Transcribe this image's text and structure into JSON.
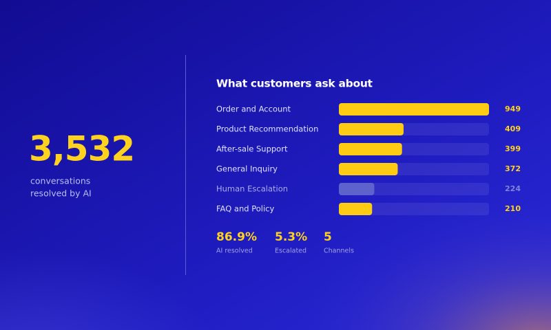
{
  "headline": {
    "value": "3,532",
    "label_lines": [
      "conversations",
      "resolved by AI"
    ]
  },
  "chart_data": {
    "type": "hbar",
    "title": "What customers ask about",
    "categories": [
      "Order and Account",
      "Product Recommendation",
      "After-sale Support",
      "General Inquiry",
      "Human Escalation",
      "FAQ and Policy"
    ],
    "values": [
      949,
      409,
      399,
      372,
      224,
      210
    ],
    "colors": [
      "#ffcc14",
      "#ffcc14",
      "#ffcc14",
      "#ffcc14",
      "#5d62cc",
      "#ffcc14"
    ]
  },
  "stats": [
    {
      "value": "86.9%",
      "label": "AI resolved"
    },
    {
      "value": "5.3%",
      "label": "Escalated"
    },
    {
      "value": "5",
      "label": "Channels"
    }
  ]
}
